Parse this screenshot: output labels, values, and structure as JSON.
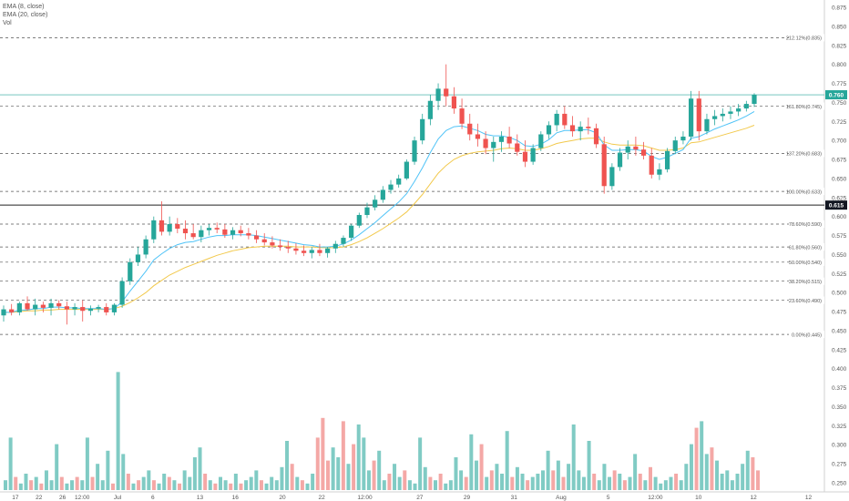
{
  "legend": {
    "ema8": "EMA (8, close)",
    "ema20": "EMA (20, close)",
    "vol": "Vol"
  },
  "colors": {
    "up": "#26a69a",
    "down": "#ef5350",
    "ema8": "#4fc3f7",
    "ema20": "#f2c94c",
    "vol_up": "#80cbc4",
    "vol_down": "#f4a8a6",
    "axis_text": "#555555",
    "grid_dash": "#555555"
  },
  "chart_data": {
    "type": "candlestick",
    "y_axis": {
      "ticks": [
        "0.875",
        "0.850",
        "0.825",
        "0.800",
        "0.775",
        "0.750",
        "0.725",
        "0.700",
        "0.675",
        "0.650",
        "0.625",
        "0.600",
        "0.575",
        "0.550",
        "0.525",
        "0.500",
        "0.475",
        "0.450",
        "0.425",
        "0.400",
        "0.375",
        "0.350",
        "0.325",
        "0.300",
        "0.275",
        "0.250"
      ],
      "tick_values": [
        0.875,
        0.85,
        0.825,
        0.8,
        0.775,
        0.75,
        0.725,
        0.7,
        0.675,
        0.65,
        0.625,
        0.6,
        0.575,
        0.55,
        0.525,
        0.5,
        0.475,
        0.45,
        0.425,
        0.4,
        0.375,
        0.35,
        0.325,
        0.3,
        0.275,
        0.25
      ]
    },
    "x_axis": {
      "ticks": [
        "17",
        "22",
        "26",
        "12:00",
        "Jul",
        "6",
        "13",
        "16",
        "20",
        "22",
        "12:00",
        "27",
        "29",
        "31",
        "Aug",
        "5",
        "12:00",
        "10",
        "12",
        "12"
      ],
      "tick_index": [
        3,
        9,
        15,
        20,
        29,
        38,
        50,
        59,
        71,
        81,
        92,
        106,
        118,
        130,
        142,
        154,
        166,
        177,
        191,
        205
      ]
    },
    "fib_levels": [
      {
        "label": "212.12%(0.835)",
        "value": 0.835
      },
      {
        "label": "161.80%(0.745)",
        "value": 0.745
      },
      {
        "label": "137.20%(0.683)",
        "value": 0.683
      },
      {
        "label": "100.00%(0.633)",
        "value": 0.633
      },
      {
        "label": "78.60%(0.590)",
        "value": 0.59
      },
      {
        "label": "61.80%(0.560)",
        "value": 0.56
      },
      {
        "label": "50.00%(0.540)",
        "value": 0.54
      },
      {
        "label": "38.20%(0.515)",
        "value": 0.515
      },
      {
        "label": "23.60%(0.490)",
        "value": 0.49
      },
      {
        "label": "0.00%(0.445)",
        "value": 0.445
      }
    ],
    "price_badge": {
      "label": "0.760",
      "value": 0.76
    },
    "crosshair_badge": {
      "label": "0.615",
      "value": 0.615
    },
    "candles": [
      [
        0.47,
        0.483,
        0.462,
        0.478
      ],
      [
        0.478,
        0.485,
        0.47,
        0.474
      ],
      [
        0.474,
        0.488,
        0.47,
        0.486
      ],
      [
        0.486,
        0.495,
        0.476,
        0.478
      ],
      [
        0.478,
        0.492,
        0.47,
        0.484
      ],
      [
        0.484,
        0.488,
        0.474,
        0.48
      ],
      [
        0.48,
        0.492,
        0.47,
        0.486
      ],
      [
        0.486,
        0.49,
        0.478,
        0.482
      ],
      [
        0.482,
        0.488,
        0.458,
        0.478
      ],
      [
        0.478,
        0.486,
        0.47,
        0.481
      ],
      [
        0.481,
        0.49,
        0.462,
        0.476
      ],
      [
        0.476,
        0.483,
        0.47,
        0.479
      ],
      [
        0.479,
        0.484,
        0.474,
        0.481
      ],
      [
        0.481,
        0.486,
        0.47,
        0.474
      ],
      [
        0.474,
        0.486,
        0.47,
        0.484
      ],
      [
        0.484,
        0.52,
        0.48,
        0.515
      ],
      [
        0.515,
        0.545,
        0.51,
        0.54
      ],
      [
        0.54,
        0.56,
        0.535,
        0.55
      ],
      [
        0.55,
        0.575,
        0.545,
        0.57
      ],
      [
        0.57,
        0.6,
        0.565,
        0.595
      ],
      [
        0.595,
        0.62,
        0.575,
        0.58
      ],
      [
        0.58,
        0.6,
        0.575,
        0.59
      ],
      [
        0.59,
        0.598,
        0.578,
        0.584
      ],
      [
        0.584,
        0.595,
        0.57,
        0.578
      ],
      [
        0.578,
        0.59,
        0.57,
        0.573
      ],
      [
        0.573,
        0.588,
        0.566,
        0.582
      ],
      [
        0.582,
        0.59,
        0.575,
        0.585
      ],
      [
        0.585,
        0.592,
        0.578,
        0.583
      ],
      [
        0.583,
        0.59,
        0.572,
        0.576
      ],
      [
        0.576,
        0.586,
        0.57,
        0.582
      ],
      [
        0.582,
        0.588,
        0.574,
        0.578
      ],
      [
        0.578,
        0.585,
        0.57,
        0.575
      ],
      [
        0.575,
        0.582,
        0.565,
        0.57
      ],
      [
        0.57,
        0.578,
        0.562,
        0.566
      ],
      [
        0.566,
        0.574,
        0.558,
        0.562
      ],
      [
        0.562,
        0.57,
        0.555,
        0.56
      ],
      [
        0.56,
        0.568,
        0.552,
        0.558
      ],
      [
        0.558,
        0.565,
        0.55,
        0.555
      ],
      [
        0.555,
        0.562,
        0.548,
        0.552
      ],
      [
        0.552,
        0.56,
        0.545,
        0.556
      ],
      [
        0.556,
        0.564,
        0.548,
        0.552
      ],
      [
        0.552,
        0.56,
        0.546,
        0.558
      ],
      [
        0.558,
        0.568,
        0.552,
        0.564
      ],
      [
        0.564,
        0.575,
        0.56,
        0.572
      ],
      [
        0.572,
        0.59,
        0.568,
        0.588
      ],
      [
        0.588,
        0.605,
        0.585,
        0.602
      ],
      [
        0.602,
        0.618,
        0.598,
        0.612
      ],
      [
        0.612,
        0.628,
        0.608,
        0.622
      ],
      [
        0.622,
        0.64,
        0.618,
        0.635
      ],
      [
        0.635,
        0.648,
        0.63,
        0.642
      ],
      [
        0.642,
        0.655,
        0.638,
        0.65
      ],
      [
        0.65,
        0.675,
        0.648,
        0.672
      ],
      [
        0.672,
        0.705,
        0.668,
        0.7
      ],
      [
        0.7,
        0.735,
        0.695,
        0.728
      ],
      [
        0.728,
        0.76,
        0.72,
        0.752
      ],
      [
        0.752,
        0.775,
        0.74,
        0.768
      ],
      [
        0.768,
        0.8,
        0.745,
        0.758
      ],
      [
        0.758,
        0.77,
        0.735,
        0.742
      ],
      [
        0.742,
        0.755,
        0.715,
        0.722
      ],
      [
        0.722,
        0.735,
        0.7,
        0.708
      ],
      [
        0.708,
        0.722,
        0.692,
        0.702
      ],
      [
        0.702,
        0.712,
        0.682,
        0.69
      ],
      [
        0.69,
        0.705,
        0.672,
        0.698
      ],
      [
        0.698,
        0.712,
        0.685,
        0.705
      ],
      [
        0.705,
        0.718,
        0.69,
        0.696
      ],
      [
        0.696,
        0.708,
        0.68,
        0.685
      ],
      [
        0.685,
        0.7,
        0.665,
        0.672
      ],
      [
        0.672,
        0.695,
        0.668,
        0.69
      ],
      [
        0.69,
        0.712,
        0.686,
        0.708
      ],
      [
        0.708,
        0.725,
        0.702,
        0.72
      ],
      [
        0.72,
        0.74,
        0.712,
        0.735
      ],
      [
        0.735,
        0.745,
        0.715,
        0.72
      ],
      [
        0.72,
        0.732,
        0.705,
        0.712
      ],
      [
        0.712,
        0.725,
        0.7,
        0.718
      ],
      [
        0.718,
        0.73,
        0.708,
        0.716
      ],
      [
        0.716,
        0.722,
        0.69,
        0.695
      ],
      [
        0.695,
        0.705,
        0.63,
        0.64
      ],
      [
        0.64,
        0.67,
        0.635,
        0.665
      ],
      [
        0.665,
        0.69,
        0.66,
        0.684
      ],
      [
        0.684,
        0.7,
        0.675,
        0.692
      ],
      [
        0.692,
        0.705,
        0.68,
        0.688
      ],
      [
        0.688,
        0.698,
        0.675,
        0.68
      ],
      [
        0.68,
        0.69,
        0.65,
        0.655
      ],
      [
        0.655,
        0.67,
        0.648,
        0.662
      ],
      [
        0.662,
        0.69,
        0.658,
        0.686
      ],
      [
        0.686,
        0.705,
        0.682,
        0.7
      ],
      [
        0.7,
        0.712,
        0.695,
        0.705
      ],
      [
        0.705,
        0.765,
        0.7,
        0.755
      ],
      [
        0.755,
        0.765,
        0.7,
        0.712
      ],
      [
        0.712,
        0.735,
        0.708,
        0.728
      ],
      [
        0.728,
        0.74,
        0.72,
        0.732
      ],
      [
        0.732,
        0.742,
        0.725,
        0.735
      ],
      [
        0.735,
        0.745,
        0.728,
        0.738
      ],
      [
        0.738,
        0.748,
        0.732,
        0.742
      ],
      [
        0.742,
        0.752,
        0.738,
        0.748
      ],
      [
        0.748,
        0.762,
        0.744,
        0.76
      ]
    ],
    "ema8": [
      0.474,
      0.474,
      0.477,
      0.477,
      0.479,
      0.479,
      0.481,
      0.481,
      0.48,
      0.48,
      0.479,
      0.479,
      0.479,
      0.478,
      0.479,
      0.488,
      0.502,
      0.515,
      0.528,
      0.543,
      0.551,
      0.558,
      0.563,
      0.566,
      0.567,
      0.57,
      0.573,
      0.575,
      0.575,
      0.576,
      0.576,
      0.576,
      0.575,
      0.573,
      0.571,
      0.569,
      0.567,
      0.565,
      0.563,
      0.562,
      0.56,
      0.56,
      0.561,
      0.564,
      0.569,
      0.576,
      0.584,
      0.592,
      0.601,
      0.61,
      0.619,
      0.63,
      0.646,
      0.664,
      0.684,
      0.702,
      0.713,
      0.718,
      0.719,
      0.716,
      0.713,
      0.708,
      0.706,
      0.706,
      0.704,
      0.7,
      0.693,
      0.692,
      0.695,
      0.701,
      0.71,
      0.713,
      0.713,
      0.714,
      0.714,
      0.71,
      0.694,
      0.687,
      0.687,
      0.688,
      0.688,
      0.686,
      0.679,
      0.675,
      0.678,
      0.683,
      0.688,
      0.703,
      0.705,
      0.71,
      0.715,
      0.719,
      0.723,
      0.727,
      0.732,
      0.738
    ],
    "ema20": [
      0.474,
      0.474,
      0.475,
      0.476,
      0.476,
      0.477,
      0.477,
      0.478,
      0.478,
      0.478,
      0.478,
      0.478,
      0.478,
      0.478,
      0.479,
      0.482,
      0.487,
      0.493,
      0.5,
      0.509,
      0.516,
      0.523,
      0.528,
      0.533,
      0.537,
      0.541,
      0.545,
      0.549,
      0.552,
      0.555,
      0.557,
      0.559,
      0.56,
      0.561,
      0.561,
      0.561,
      0.561,
      0.56,
      0.56,
      0.56,
      0.559,
      0.559,
      0.559,
      0.56,
      0.563,
      0.567,
      0.572,
      0.578,
      0.584,
      0.591,
      0.598,
      0.606,
      0.617,
      0.629,
      0.643,
      0.657,
      0.667,
      0.675,
      0.68,
      0.683,
      0.685,
      0.686,
      0.687,
      0.689,
      0.69,
      0.689,
      0.687,
      0.687,
      0.689,
      0.692,
      0.696,
      0.698,
      0.7,
      0.702,
      0.703,
      0.703,
      0.698,
      0.695,
      0.694,
      0.694,
      0.694,
      0.693,
      0.69,
      0.687,
      0.687,
      0.688,
      0.69,
      0.697,
      0.698,
      0.701,
      0.704,
      0.707,
      0.71,
      0.713,
      0.716,
      0.72
    ],
    "volume": [
      0.3,
      1.6,
      0.4,
      0.2,
      0.5,
      0.3,
      0.4,
      0.2,
      0.6,
      0.3,
      1.4,
      0.4,
      0.2,
      0.3,
      0.4,
      0.3,
      1.6,
      0.4,
      0.8,
      0.3,
      1.2,
      0.2,
      3.6,
      1.1,
      0.5,
      0.2,
      0.3,
      0.4,
      0.6,
      0.3,
      0.2,
      0.5,
      0.4,
      0.3,
      0.2,
      0.6,
      0.4,
      1.0,
      1.3,
      0.5,
      0.3,
      0.2,
      0.4,
      0.3,
      0.2,
      0.5,
      0.2,
      0.3,
      0.4,
      0.6,
      0.3,
      0.2,
      0.4,
      0.3,
      0.7,
      1.5,
      0.8,
      0.4,
      0.3,
      0.2,
      0.5,
      1.6,
      2.2,
      0.9,
      1.3,
      1.0,
      2.1,
      0.8,
      1.4,
      2.0,
      1.6,
      0.6,
      0.9,
      1.2,
      0.3,
      0.5,
      0.8,
      0.4,
      0.6,
      0.3,
      0.2,
      1.6,
      0.7,
      0.4,
      0.3,
      0.5,
      0.2,
      0.3,
      1.0,
      0.6,
      0.4,
      1.7,
      0.9,
      1.4,
      0.4,
      0.6,
      0.8,
      0.5,
      1.8,
      0.4,
      0.7,
      0.5,
      0.3,
      0.4,
      0.5,
      0.6,
      1.2,
      0.6,
      0.9,
      0.4,
      0.8,
      2.0,
      0.6,
      0.4,
      1.5,
      0.5,
      0.3,
      0.8,
      0.4,
      0.6,
      0.5,
      0.3,
      0.4,
      1.1,
      0.5,
      0.3,
      0.7,
      0.4,
      0.2,
      0.3,
      0.4,
      0.5,
      0.3,
      0.8,
      1.4,
      1.9,
      2.1,
      1.1,
      1.3,
      0.9,
      0.5,
      0.6,
      0.3,
      0.5,
      0.8,
      1.2,
      1.0,
      0.6
    ],
    "volume_dir": [
      1,
      1,
      0,
      1,
      1,
      0,
      1,
      0,
      1,
      1,
      1,
      0,
      1,
      1,
      0,
      1,
      1,
      0,
      1,
      1,
      1,
      0,
      1,
      1,
      0,
      1,
      0,
      1,
      1,
      0,
      1,
      1,
      0,
      1,
      0,
      1,
      1,
      1,
      1,
      0,
      1,
      0,
      1,
      1,
      0,
      1,
      0,
      1,
      1,
      1,
      0,
      1,
      1,
      1,
      1,
      1,
      0,
      1,
      0,
      1,
      1,
      0,
      0,
      0,
      1,
      1,
      0,
      1,
      0,
      1,
      1,
      1,
      0,
      1,
      1,
      0,
      1,
      1,
      0,
      1,
      1,
      1,
      1,
      0,
      1,
      0,
      1,
      1,
      1,
      1,
      0,
      1,
      1,
      0,
      1,
      0,
      1,
      1,
      1,
      0,
      1,
      1,
      0,
      1,
      1,
      1,
      1,
      0,
      1,
      0,
      1,
      1,
      1,
      1,
      1,
      0,
      1,
      1,
      1,
      0,
      1,
      0,
      1,
      1,
      0,
      1,
      0,
      1,
      1,
      1,
      1,
      0,
      1,
      1,
      1,
      0,
      1,
      1,
      0,
      1,
      1,
      1,
      1,
      1,
      1,
      1
    ]
  }
}
